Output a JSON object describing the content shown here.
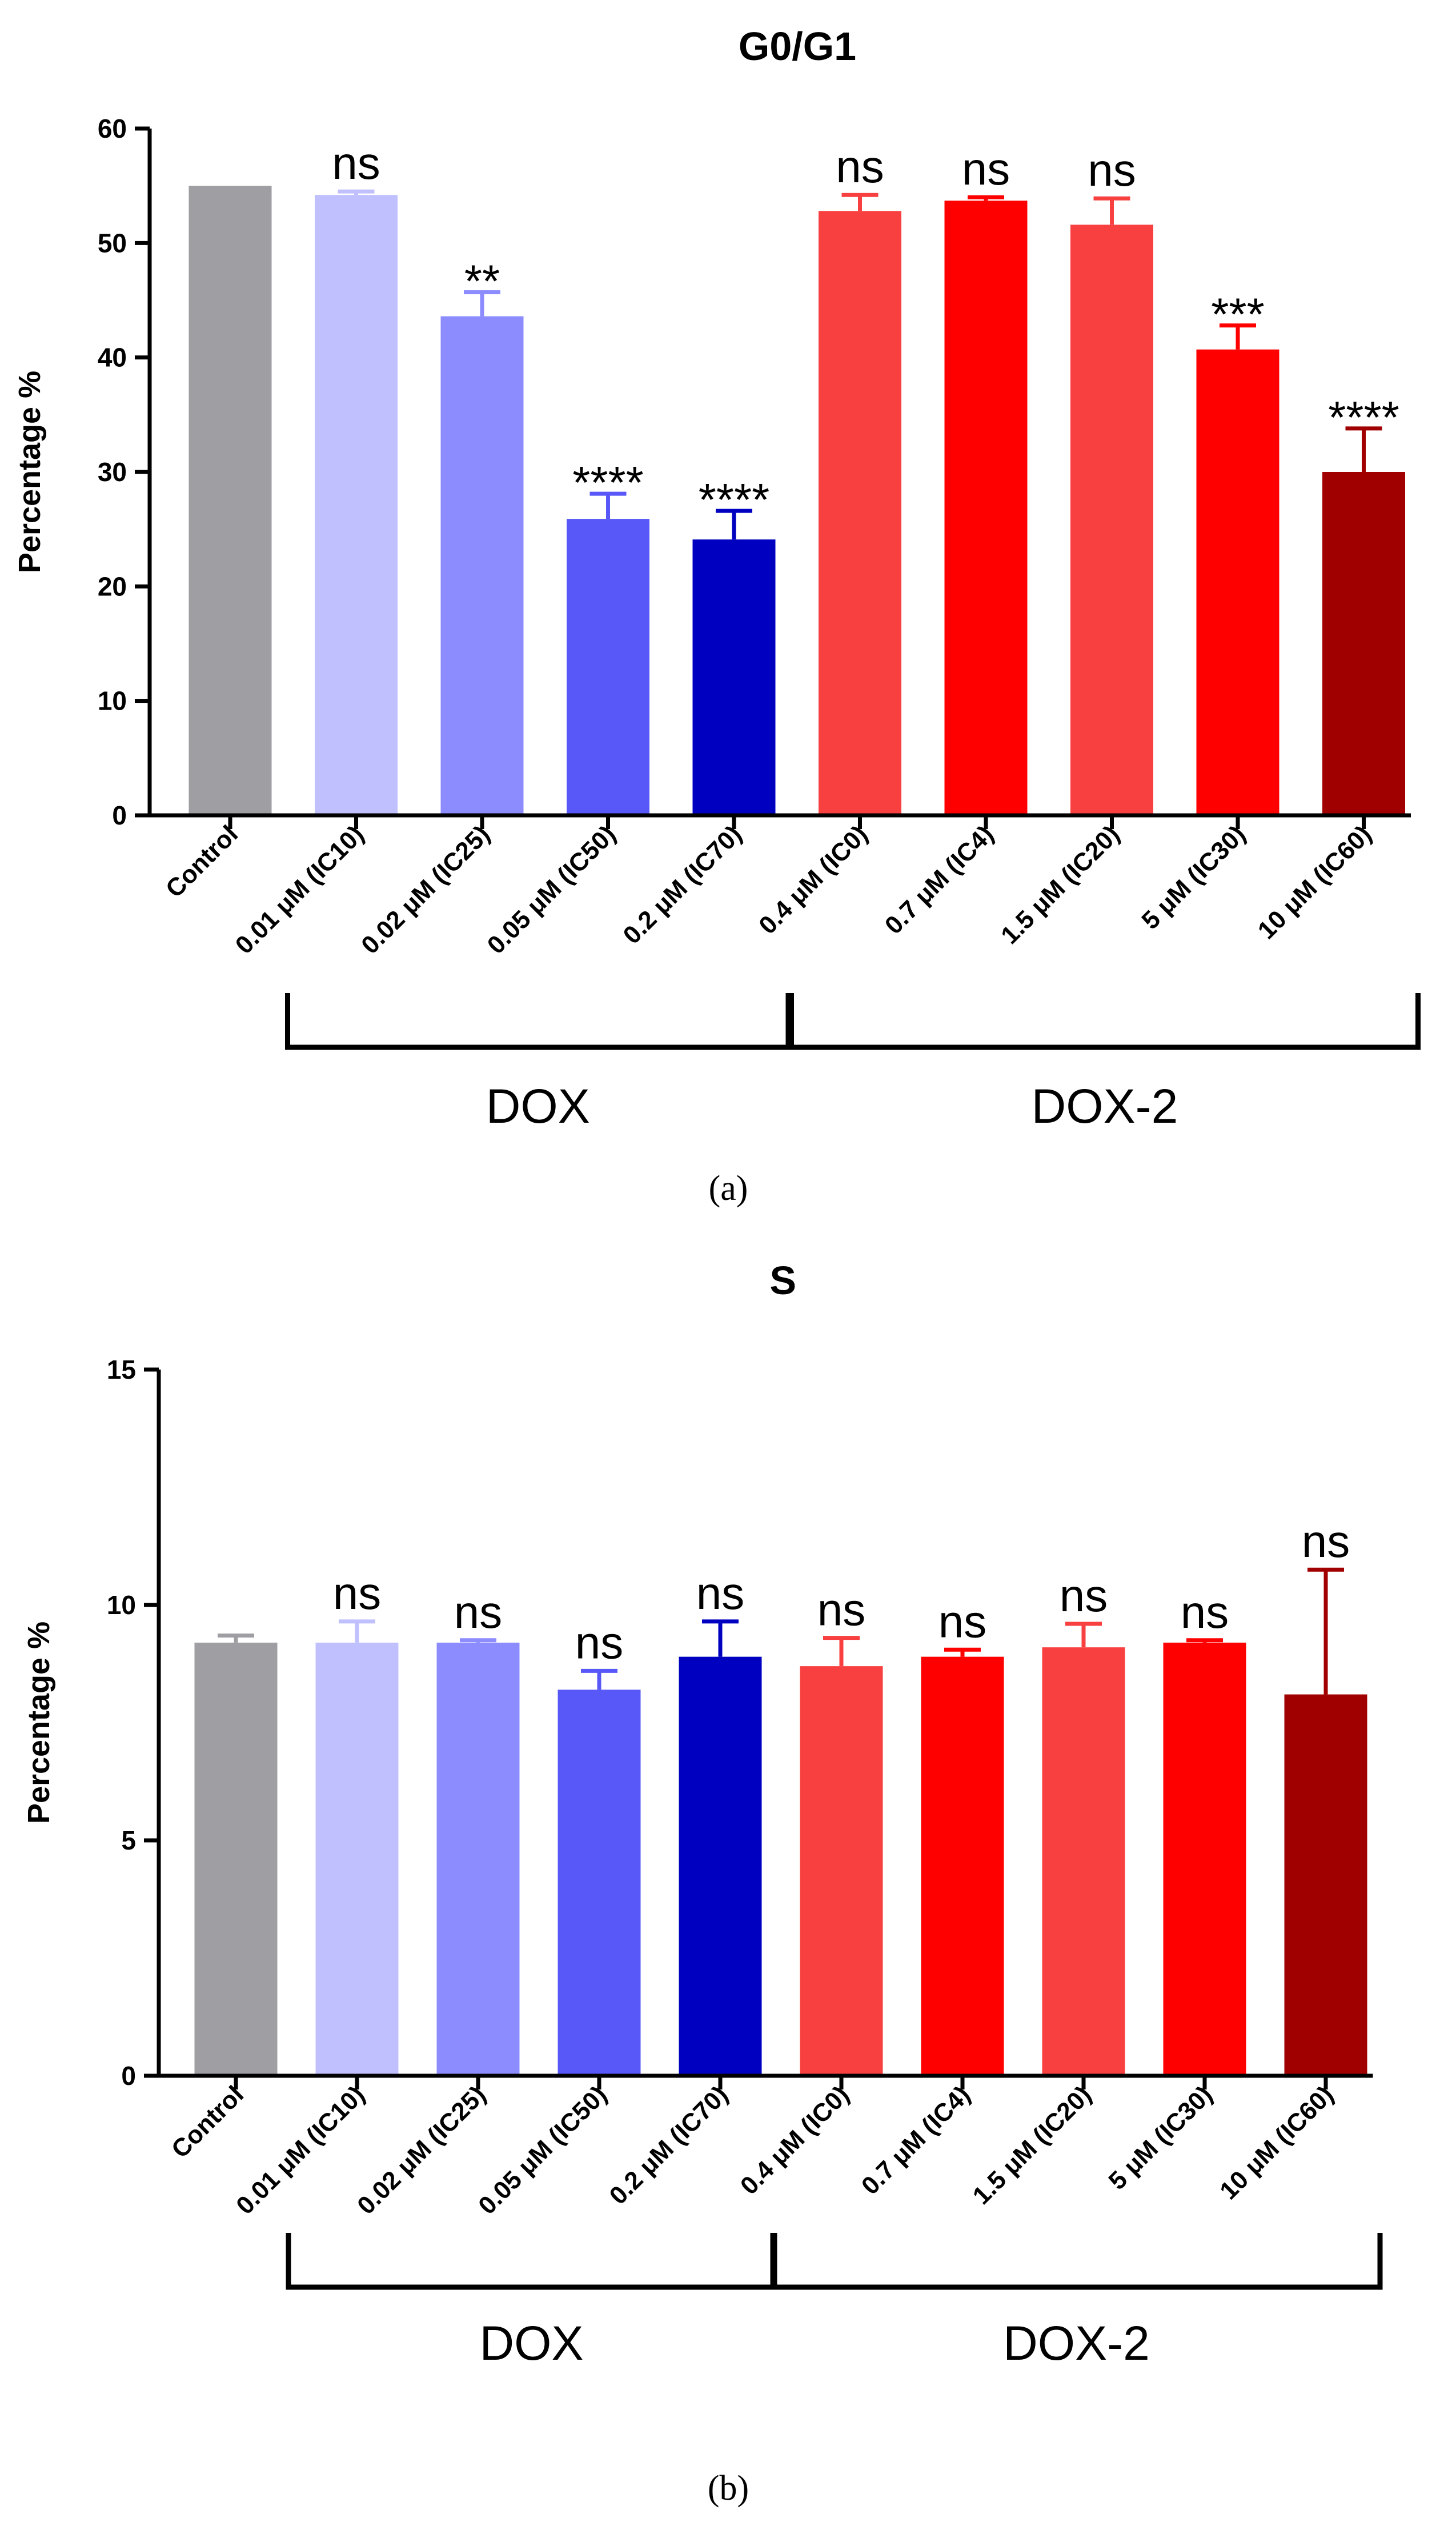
{
  "colors": {
    "control": "#9e9ea3",
    "dox_ic10": "#c0c0ff",
    "dox_ic25": "#8c8cff",
    "dox_ic50": "#5858f8",
    "dox_ic70": "#0000c0",
    "dox2_light": "#f84040",
    "dox2_red": "#ff0000",
    "dox2_dark": "#a00000",
    "axis": "#000000"
  },
  "chart_data": [
    {
      "type": "bar",
      "panel_caption": "(a)",
      "title": "G0/G1",
      "ylabel": "Percentage %",
      "xlabel": "",
      "ylim": [
        0,
        60
      ],
      "yticks": [
        "0",
        "10",
        "20",
        "30",
        "40",
        "50",
        "60"
      ],
      "categories": [
        "Control",
        "0.01 μM (IC10)",
        "0.02 μM (IC25)",
        "0.05 μM (IC50)",
        "0.2 μM (IC70)",
        "0.4 μM (IC0)",
        "0.7 μM (IC4)",
        "1.5 μM (IC20)",
        "5 μM (IC30)",
        "10 μM (IC60)"
      ],
      "values": [
        55,
        54.2,
        43.6,
        25.9,
        24.1,
        52.8,
        53.7,
        51.6,
        40.7,
        30.0
      ],
      "errors": [
        0,
        0.3,
        2.1,
        2.2,
        2.5,
        1.4,
        0.3,
        2.3,
        2.1,
        3.8
      ],
      "significance": [
        "",
        "ns",
        "**",
        "****",
        "****",
        "ns",
        "ns",
        "ns",
        "***",
        "****"
      ],
      "bar_colors": [
        "control",
        "dox_ic10",
        "dox_ic25",
        "dox_ic50",
        "dox_ic70",
        "dox2_light",
        "dox2_red",
        "dox2_light",
        "dox2_red",
        "dox2_dark"
      ],
      "groups": [
        {
          "label": "DOX",
          "first": 1,
          "last": 4
        },
        {
          "label": "DOX-2",
          "first": 5,
          "last": 9
        }
      ]
    },
    {
      "type": "bar",
      "panel_caption": "(b)",
      "title": "S",
      "ylabel": "Percentage %",
      "xlabel": "",
      "ylim": [
        0,
        15
      ],
      "yticks": [
        "0",
        "5",
        "10",
        "15"
      ],
      "categories": [
        "Control",
        "0.01 μM (IC10)",
        "0.02 μM (IC25)",
        "0.05 μM (IC50)",
        "0.2 μM (IC70)",
        "0.4 μM (IC0)",
        "0.7 μM (IC4)",
        "1.5 μM (IC20)",
        "5 μM (IC30)",
        "10 μM (IC60)"
      ],
      "values": [
        9.2,
        9.2,
        9.2,
        8.2,
        8.9,
        8.7,
        8.9,
        9.1,
        9.2,
        8.1
      ],
      "errors": [
        0.15,
        0.45,
        0.05,
        0.4,
        0.75,
        0.6,
        0.15,
        0.5,
        0.05,
        2.65
      ],
      "significance": [
        "",
        "ns",
        "ns",
        "ns",
        "ns",
        "ns",
        "ns",
        "ns",
        "ns",
        "ns"
      ],
      "bar_colors": [
        "control",
        "dox_ic10",
        "dox_ic25",
        "dox_ic50",
        "dox_ic70",
        "dox2_light",
        "dox2_red",
        "dox2_light",
        "dox2_red",
        "dox2_dark"
      ],
      "groups": [
        {
          "label": "DOX",
          "first": 1,
          "last": 4
        },
        {
          "label": "DOX-2",
          "first": 5,
          "last": 9
        }
      ]
    }
  ]
}
